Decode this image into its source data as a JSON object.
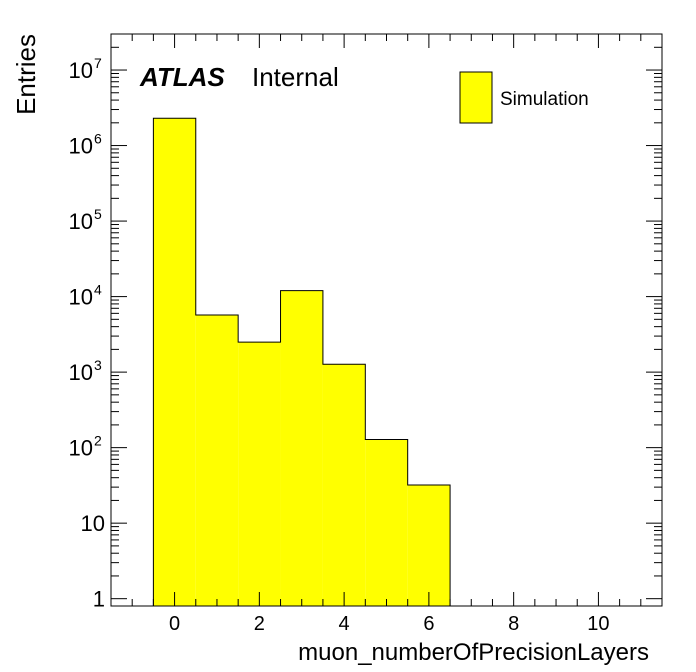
{
  "chart_data": {
    "type": "bar",
    "xlabel": "muon_numberOfPrecisionLayers",
    "ylabel": "Entries",
    "x_range": [
      -1.5,
      11.5
    ],
    "y_range": [
      0.8,
      30000000
    ],
    "y_scale": "log",
    "x_ticks": [
      0,
      2,
      4,
      6,
      8,
      10
    ],
    "y_ticks": [
      {
        "value": 1,
        "base": "1",
        "exp": ""
      },
      {
        "value": 10,
        "base": "10",
        "exp": ""
      },
      {
        "value": 100,
        "base": "10",
        "exp": "2"
      },
      {
        "value": 1000,
        "base": "10",
        "exp": "3"
      },
      {
        "value": 10000,
        "base": "10",
        "exp": "4"
      },
      {
        "value": 100000,
        "base": "10",
        "exp": "5"
      },
      {
        "value": 1000000,
        "base": "10",
        "exp": "6"
      },
      {
        "value": 10000000,
        "base": "10",
        "exp": "7"
      }
    ],
    "bins": [
      {
        "low": -0.5,
        "high": 0.5,
        "value": 2300000
      },
      {
        "low": 0.5,
        "high": 1.5,
        "value": 5700
      },
      {
        "low": 1.5,
        "high": 2.5,
        "value": 2500
      },
      {
        "low": 2.5,
        "high": 3.5,
        "value": 12000
      },
      {
        "low": 3.5,
        "high": 4.5,
        "value": 1270
      },
      {
        "low": 4.5,
        "high": 5.5,
        "value": 128
      },
      {
        "low": 5.5,
        "high": 6.5,
        "value": 32
      }
    ],
    "series": [
      {
        "name": "Simulation",
        "color": "#ffff00"
      }
    ],
    "legend_position": "top-right",
    "grid": false
  },
  "labels": {
    "atlas": "ATLAS",
    "internal": "Internal"
  }
}
